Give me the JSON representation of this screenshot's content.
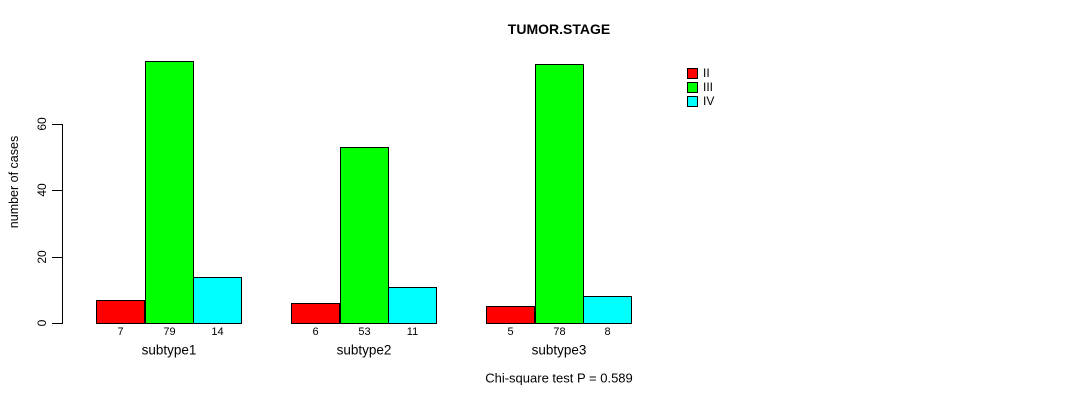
{
  "title": "TUMOR.STAGE",
  "annotation": {
    "chi_square": "Chi-square test P = 0.589"
  },
  "chart_data": {
    "type": "bar",
    "title": "TUMOR.STAGE",
    "categories": [
      "subtype1",
      "subtype2",
      "subtype3"
    ],
    "series": [
      {
        "name": "II",
        "color": "#FF0000",
        "values": [
          7,
          6,
          5
        ]
      },
      {
        "name": "III",
        "color": "#00FF00",
        "values": [
          79,
          53,
          78
        ]
      },
      {
        "name": "IV",
        "color": "#00FFFF",
        "values": [
          14,
          11,
          8
        ]
      }
    ],
    "xlabel": "",
    "ylabel": "number of cases",
    "yticks": [
      0,
      20,
      40,
      60
    ],
    "ylim": [
      0,
      85
    ],
    "grid": false,
    "legend_position": "right-outside",
    "bar_value_labels_shown": true,
    "annotation": "Chi-square test P = 0.589",
    "background_color": "#FFFFFF",
    "bar_border_color": "#000000"
  }
}
